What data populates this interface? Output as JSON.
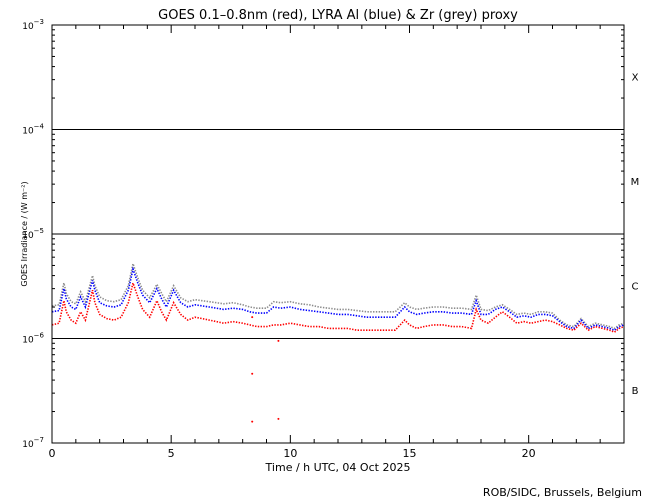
{
  "chart_data": {
    "type": "line",
    "title": "GOES 0.1–0.8nm (red), LYRA Al (blue) & Zr (grey) proxy",
    "xlabel": "Time / h UTC, 04 Oct 2025",
    "ylabel": "GOES Irradiance / (W m⁻²)",
    "credit": "ROB/SIDC, Brussels, Belgium",
    "xlim": [
      0,
      24
    ],
    "ylim": [
      1e-07,
      0.001
    ],
    "yscale": "log",
    "grid": "horizontal lines at decade boundaries",
    "x_ticks": [
      0,
      5,
      10,
      15,
      20
    ],
    "y_ticks": [
      {
        "value": 1e-07,
        "base": "10",
        "exp": "−7"
      },
      {
        "value": 1e-06,
        "base": "10",
        "exp": "−6"
      },
      {
        "value": 1e-05,
        "base": "10",
        "exp": "−5"
      },
      {
        "value": 0.0001,
        "base": "10",
        "exp": "−4"
      },
      {
        "value": 0.001,
        "base": "10",
        "exp": "−3"
      }
    ],
    "flare_classes": [
      {
        "label": "B",
        "value": 3.2e-07
      },
      {
        "label": "C",
        "value": 3.2e-06
      },
      {
        "label": "M",
        "value": 3.2e-05
      },
      {
        "label": "X",
        "value": 0.00032
      }
    ],
    "series": [
      {
        "name": "GOES 0.1–0.8nm",
        "color": "#ff0000",
        "x": [
          0.0,
          0.3,
          0.5,
          0.6,
          0.8,
          1.0,
          1.2,
          1.4,
          1.7,
          1.8,
          2.0,
          2.3,
          2.6,
          2.9,
          3.2,
          3.4,
          3.6,
          3.8,
          4.1,
          4.4,
          4.6,
          4.8,
          5.1,
          5.4,
          5.7,
          6.0,
          6.3,
          6.6,
          6.9,
          7.2,
          7.6,
          8.0,
          8.3,
          8.6,
          9.0,
          9.3,
          9.6,
          10.0,
          10.4,
          10.8,
          11.2,
          11.6,
          12.0,
          12.4,
          12.8,
          13.2,
          13.6,
          14.0,
          14.4,
          14.8,
          15.0,
          15.3,
          15.6,
          16.0,
          16.4,
          16.8,
          17.2,
          17.6,
          17.8,
          18.0,
          18.3,
          18.6,
          18.9,
          19.2,
          19.5,
          19.8,
          20.1,
          20.4,
          20.7,
          21.0,
          21.3,
          21.6,
          21.9,
          22.2,
          22.5,
          22.8,
          23.1,
          23.4,
          23.6,
          23.8,
          24.0
        ],
        "y": [
          1.35e-06,
          1.4e-06,
          2.3e-06,
          1.8e-06,
          1.5e-06,
          1.4e-06,
          1.8e-06,
          1.5e-06,
          2.9e-06,
          2.2e-06,
          1.7e-06,
          1.55e-06,
          1.5e-06,
          1.6e-06,
          2.2e-06,
          3.4e-06,
          2.5e-06,
          1.9e-06,
          1.6e-06,
          2.3e-06,
          1.8e-06,
          1.5e-06,
          2.2e-06,
          1.7e-06,
          1.5e-06,
          1.6e-06,
          1.55e-06,
          1.5e-06,
          1.45e-06,
          1.4e-06,
          1.45e-06,
          1.4e-06,
          1.35e-06,
          1.3e-06,
          1.3e-06,
          1.35e-06,
          1.35e-06,
          1.4e-06,
          1.35e-06,
          1.3e-06,
          1.3e-06,
          1.25e-06,
          1.25e-06,
          1.25e-06,
          1.2e-06,
          1.2e-06,
          1.2e-06,
          1.2e-06,
          1.2e-06,
          1.5e-06,
          1.35e-06,
          1.25e-06,
          1.3e-06,
          1.35e-06,
          1.35e-06,
          1.3e-06,
          1.3e-06,
          1.25e-06,
          1.9e-06,
          1.5e-06,
          1.4e-06,
          1.6e-06,
          1.8e-06,
          1.6e-06,
          1.4e-06,
          1.45e-06,
          1.4e-06,
          1.45e-06,
          1.5e-06,
          1.45e-06,
          1.35e-06,
          1.25e-06,
          1.2e-06,
          1.4e-06,
          1.2e-06,
          1.3e-06,
          1.25e-06,
          1.2e-06,
          1.15e-06,
          1.25e-06,
          1.3e-06
        ]
      },
      {
        "name": "LYRA Al proxy",
        "color": "#0000ff",
        "x": [
          0.0,
          0.3,
          0.5,
          0.6,
          0.8,
          1.0,
          1.2,
          1.4,
          1.7,
          1.8,
          2.0,
          2.3,
          2.6,
          2.9,
          3.2,
          3.4,
          3.6,
          3.8,
          4.1,
          4.4,
          4.6,
          4.8,
          5.1,
          5.4,
          5.7,
          6.0,
          6.3,
          6.6,
          6.9,
          7.2,
          7.6,
          8.0,
          8.3,
          8.6,
          9.0,
          9.3,
          9.6,
          10.0,
          10.4,
          10.8,
          11.2,
          11.6,
          12.0,
          12.4,
          12.8,
          13.2,
          13.6,
          14.0,
          14.4,
          14.8,
          15.0,
          15.3,
          15.6,
          16.0,
          16.4,
          16.8,
          17.2,
          17.6,
          17.8,
          18.0,
          18.3,
          18.6,
          18.9,
          19.2,
          19.5,
          19.8,
          20.1,
          20.4,
          20.7,
          21.0,
          21.3,
          21.6,
          21.9,
          22.2,
          22.5,
          22.8,
          23.1,
          23.4,
          23.6,
          23.8,
          24.0
        ],
        "y": [
          1.8e-06,
          1.85e-06,
          3e-06,
          2.4e-06,
          2e-06,
          1.9e-06,
          2.5e-06,
          2e-06,
          3.6e-06,
          2.9e-06,
          2.2e-06,
          2.05e-06,
          2e-06,
          2.1e-06,
          2.9e-06,
          4.6e-06,
          3.4e-06,
          2.6e-06,
          2.2e-06,
          3e-06,
          2.4e-06,
          2e-06,
          2.9e-06,
          2.2e-06,
          2e-06,
          2.1e-06,
          2.05e-06,
          2e-06,
          1.95e-06,
          1.9e-06,
          1.95e-06,
          1.9e-06,
          1.8e-06,
          1.75e-06,
          1.75e-06,
          2e-06,
          1.95e-06,
          2e-06,
          1.9e-06,
          1.85e-06,
          1.8e-06,
          1.75e-06,
          1.7e-06,
          1.7e-06,
          1.65e-06,
          1.6e-06,
          1.6e-06,
          1.6e-06,
          1.6e-06,
          2e-06,
          1.8e-06,
          1.7e-06,
          1.75e-06,
          1.8e-06,
          1.8e-06,
          1.75e-06,
          1.75e-06,
          1.7e-06,
          2.3e-06,
          1.7e-06,
          1.7e-06,
          1.9e-06,
          2e-06,
          1.8e-06,
          1.6e-06,
          1.65e-06,
          1.6e-06,
          1.7e-06,
          1.7e-06,
          1.65e-06,
          1.45e-06,
          1.3e-06,
          1.25e-06,
          1.5e-06,
          1.25e-06,
          1.35e-06,
          1.3e-06,
          1.25e-06,
          1.2e-06,
          1.3e-06,
          1.35e-06
        ]
      },
      {
        "name": "LYRA Zr proxy",
        "color": "#8c8c8c",
        "x": [
          0.0,
          0.3,
          0.5,
          0.6,
          0.8,
          1.0,
          1.2,
          1.4,
          1.7,
          1.8,
          2.0,
          2.3,
          2.6,
          2.9,
          3.2,
          3.4,
          3.6,
          3.8,
          4.1,
          4.4,
          4.6,
          4.8,
          5.1,
          5.4,
          5.7,
          6.0,
          6.3,
          6.6,
          6.9,
          7.2,
          7.6,
          8.0,
          8.3,
          8.6,
          9.0,
          9.3,
          9.6,
          10.0,
          10.4,
          10.8,
          11.2,
          11.6,
          12.0,
          12.4,
          12.8,
          13.2,
          13.6,
          14.0,
          14.4,
          14.8,
          15.0,
          15.3,
          15.6,
          16.0,
          16.4,
          16.8,
          17.2,
          17.6,
          17.8,
          18.0,
          18.3,
          18.6,
          18.9,
          19.2,
          19.5,
          19.8,
          20.1,
          20.4,
          20.7,
          21.0,
          21.3,
          21.6,
          21.9,
          22.2,
          22.5,
          22.8,
          23.1,
          23.4,
          23.6,
          23.8,
          24.0
        ],
        "y": [
          2.05e-06,
          2.1e-06,
          3.4e-06,
          2.7e-06,
          2.25e-06,
          2.15e-06,
          2.8e-06,
          2.25e-06,
          4e-06,
          3.2e-06,
          2.5e-06,
          2.3e-06,
          2.25e-06,
          2.35e-06,
          3.2e-06,
          5.2e-06,
          3.8e-06,
          2.9e-06,
          2.45e-06,
          3.3e-06,
          2.7e-06,
          2.25e-06,
          3.2e-06,
          2.45e-06,
          2.25e-06,
          2.35e-06,
          2.3e-06,
          2.25e-06,
          2.2e-06,
          2.15e-06,
          2.2e-06,
          2.1e-06,
          2e-06,
          1.95e-06,
          1.95e-06,
          2.25e-06,
          2.2e-06,
          2.25e-06,
          2.15e-06,
          2.1e-06,
          2e-06,
          1.95e-06,
          1.9e-06,
          1.9e-06,
          1.85e-06,
          1.8e-06,
          1.8e-06,
          1.8e-06,
          1.8e-06,
          2.2e-06,
          2e-06,
          1.9e-06,
          1.95e-06,
          2e-06,
          2e-06,
          1.95e-06,
          1.95e-06,
          1.9e-06,
          2.6e-06,
          1.9e-06,
          1.85e-06,
          2e-06,
          2.1e-06,
          1.9e-06,
          1.7e-06,
          1.75e-06,
          1.7e-06,
          1.8e-06,
          1.8e-06,
          1.75e-06,
          1.5e-06,
          1.35e-06,
          1.3e-06,
          1.55e-06,
          1.3e-06,
          1.4e-06,
          1.35e-06,
          1.3e-06,
          1.25e-06,
          1.35e-06,
          1.4e-06
        ]
      }
    ],
    "outliers": [
      {
        "x": 8.4,
        "y": 1.6e-06,
        "color": "#ff0000"
      },
      {
        "x": 9.5,
        "y": 9.5e-07,
        "color": "#ff0000"
      },
      {
        "x": 8.4,
        "y": 4.6e-07,
        "color": "#ff0000"
      },
      {
        "x": 8.4,
        "y": 1.6e-07,
        "color": "#ff0000"
      },
      {
        "x": 9.5,
        "y": 1.7e-07,
        "color": "#ff0000"
      }
    ]
  }
}
